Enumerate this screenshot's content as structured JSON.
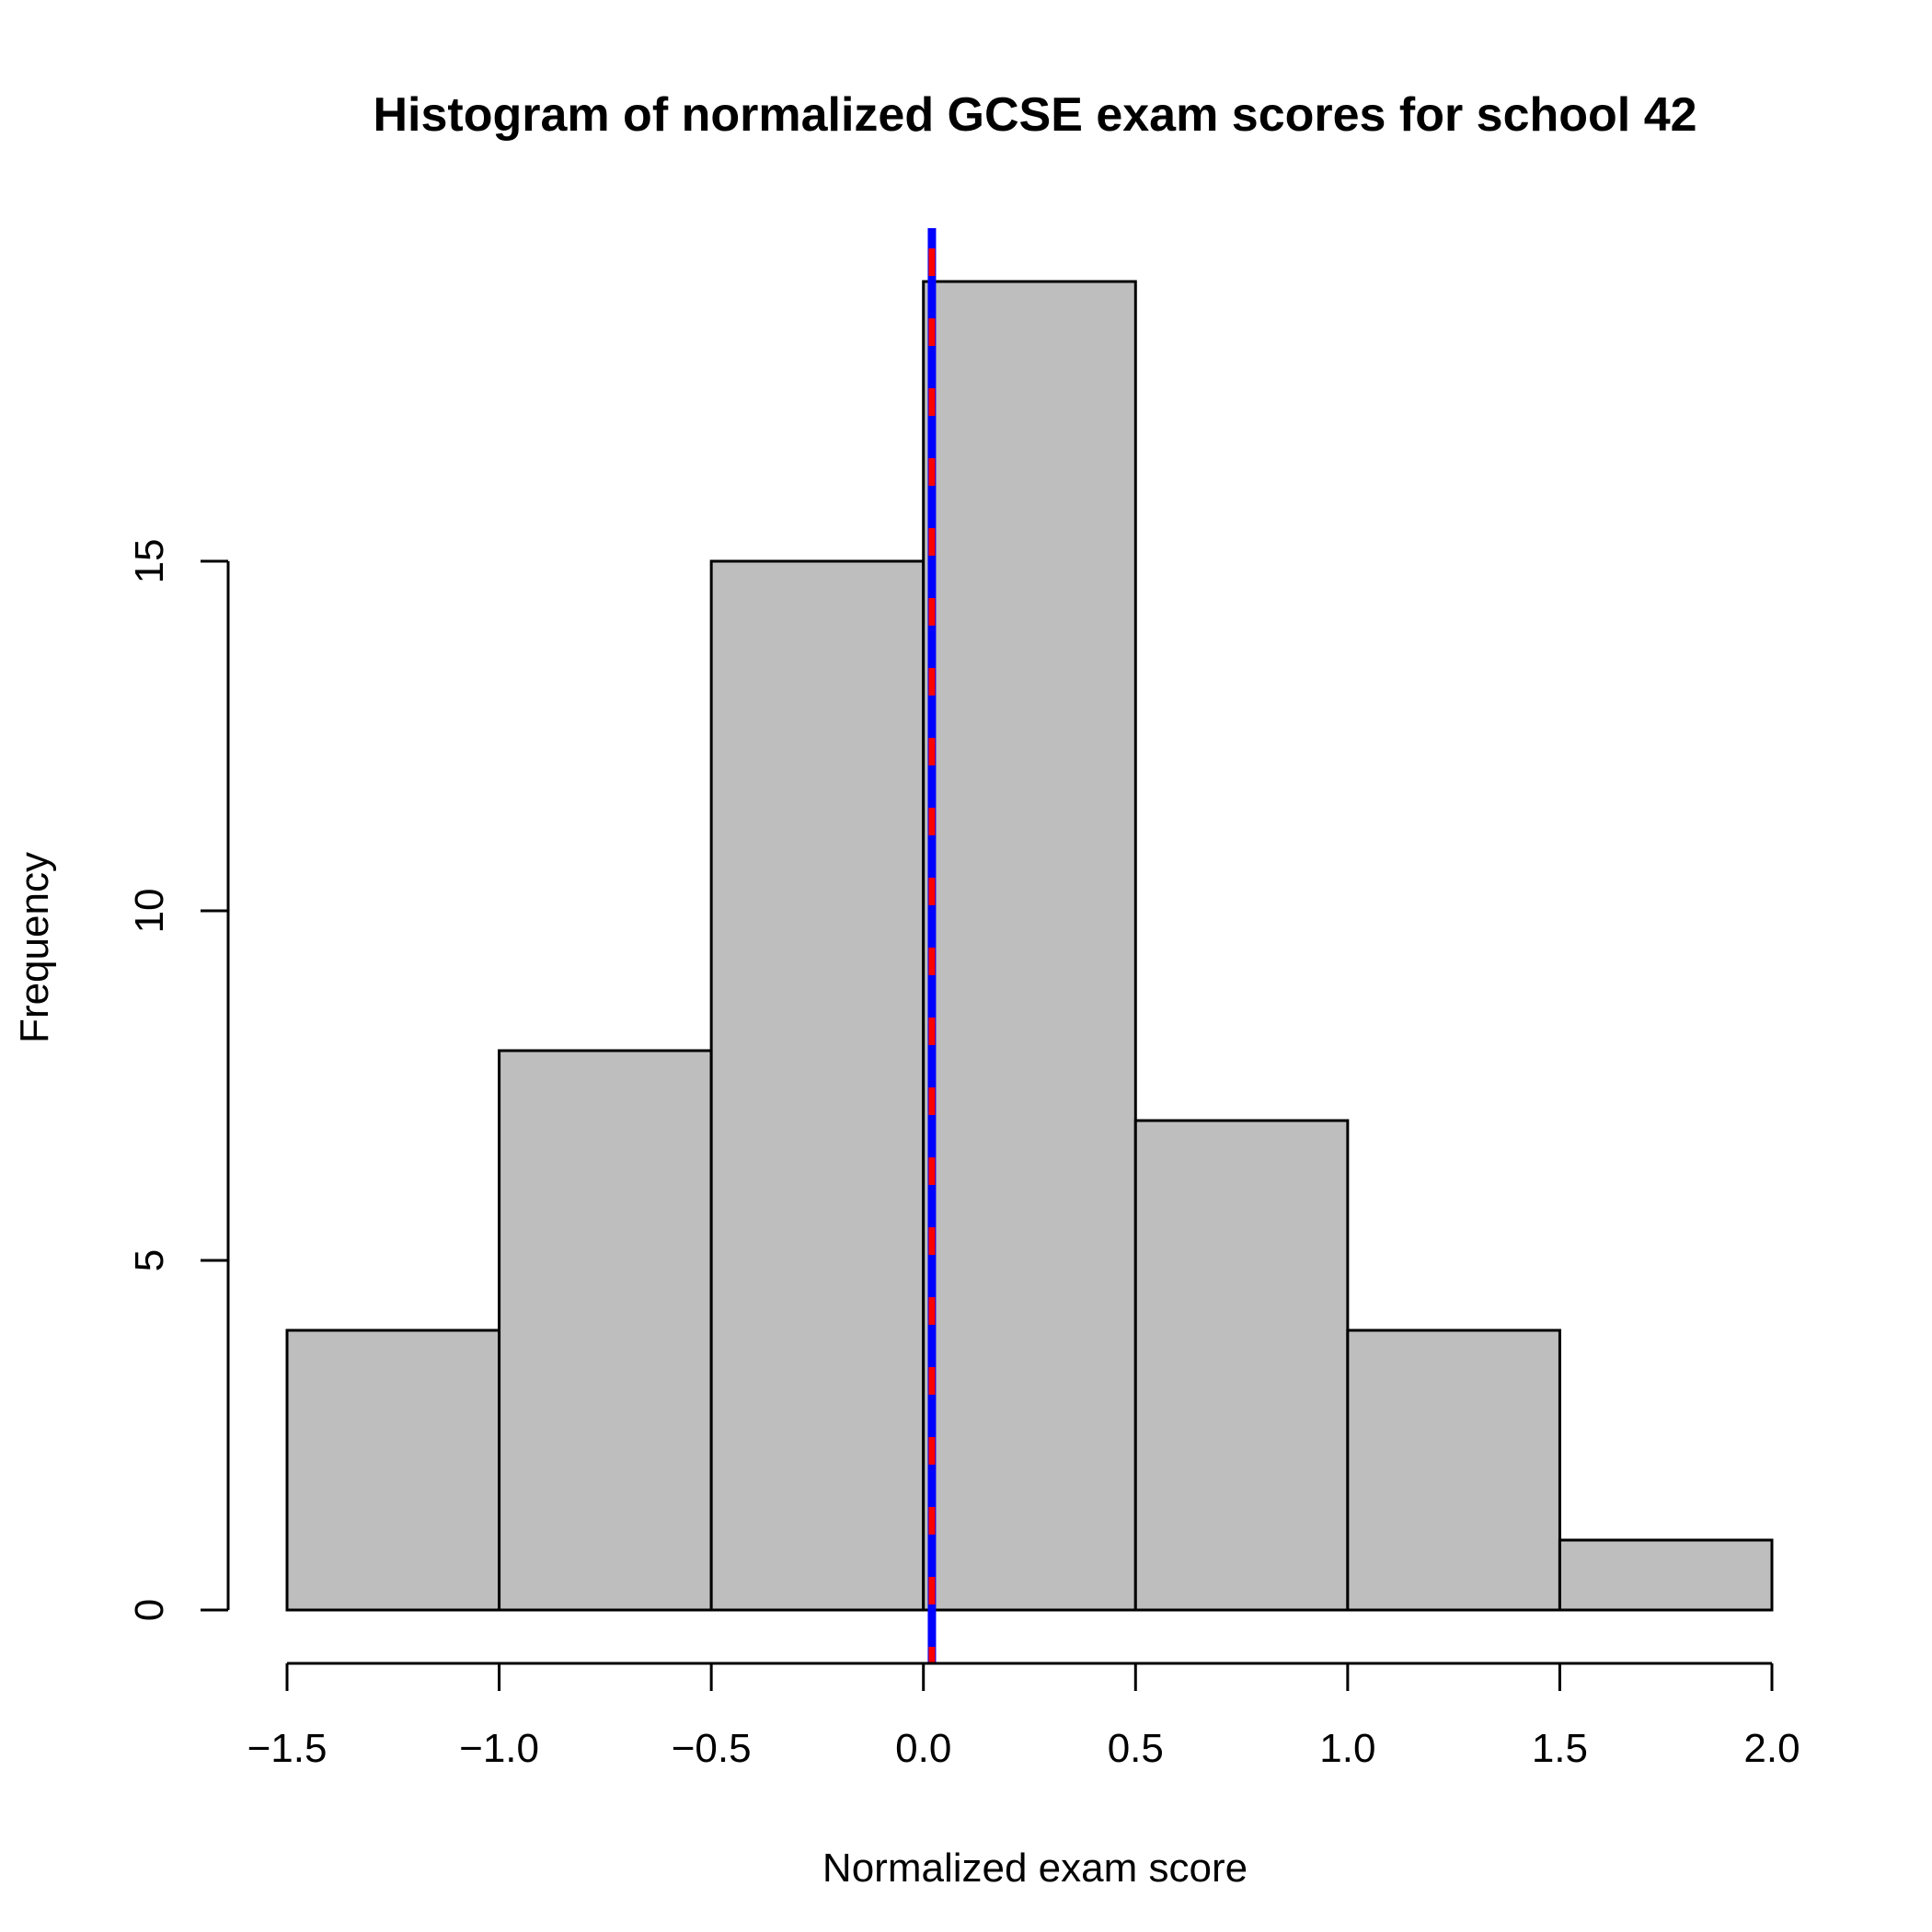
{
  "chart_data": {
    "type": "bar",
    "subtype": "histogram",
    "title": "Histogram of normalized GCSE exam scores for school 42",
    "xlabel": "Normalized exam score",
    "ylabel": "Frequency",
    "bins": [
      {
        "start": -1.5,
        "end": -1.0,
        "count": 4
      },
      {
        "start": -1.0,
        "end": -0.5,
        "count": 8
      },
      {
        "start": -0.5,
        "end": 0.0,
        "count": 15
      },
      {
        "start": 0.0,
        "end": 0.5,
        "count": 19
      },
      {
        "start": 0.5,
        "end": 1.0,
        "count": 7
      },
      {
        "start": 1.0,
        "end": 1.5,
        "count": 4
      },
      {
        "start": 1.5,
        "end": 2.0,
        "count": 1
      }
    ],
    "xlim": [
      -1.5,
      2.0
    ],
    "ylim": [
      0,
      19
    ],
    "x_ticks": [
      -1.5,
      -1.0,
      -0.5,
      0.0,
      0.5,
      1.0,
      1.5,
      2.0
    ],
    "x_tick_labels": [
      "−1.5",
      "−1.0",
      "−0.5",
      "0.0",
      "0.5",
      "1.0",
      "1.5",
      "2.0"
    ],
    "y_ticks": [
      0,
      5,
      10,
      15
    ],
    "y_tick_labels": [
      "0",
      "5",
      "10",
      "15"
    ],
    "bar_color": "#bebebe",
    "reference_lines": [
      {
        "x": 0.02,
        "color": "#0000ff",
        "style": "solid"
      },
      {
        "x": 0.02,
        "color": "#ff0000",
        "style": "dashed"
      }
    ],
    "grid": false
  }
}
